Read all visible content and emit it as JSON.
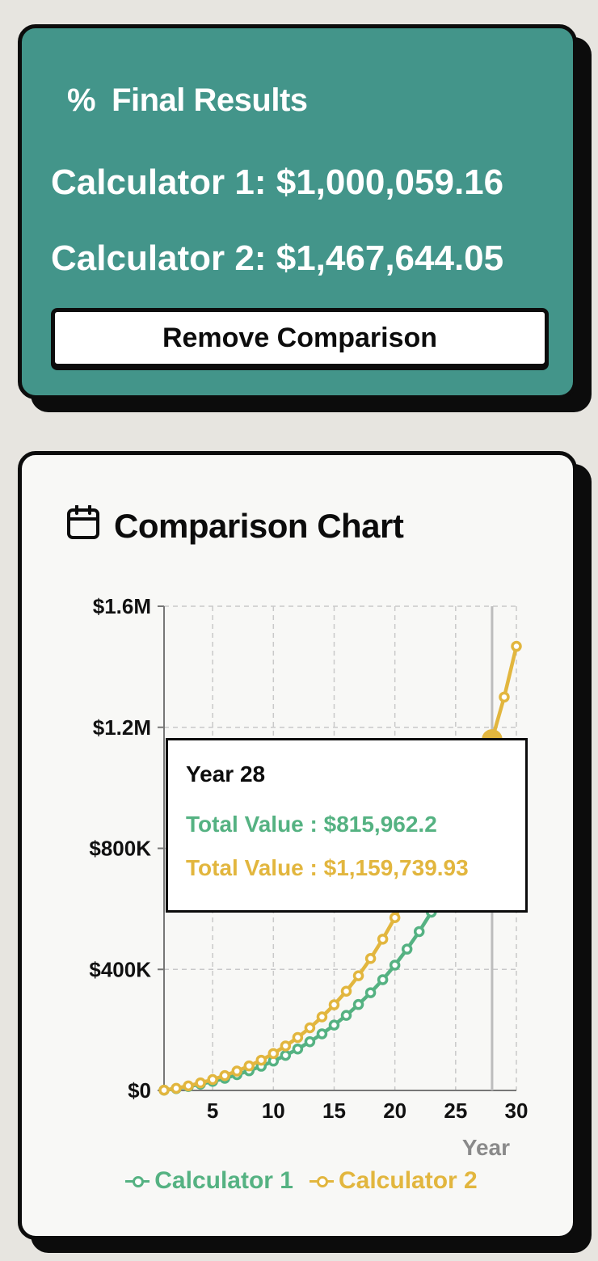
{
  "results": {
    "title": "Final Results",
    "icon": "percent-icon",
    "calc1": "Calculator 1: $1,000,059.16",
    "calc2": "Calculator 2: $1,467,644.05",
    "remove_button": "Remove Comparison"
  },
  "chart_card": {
    "title": "Comparison Chart",
    "icon": "calendar-icon"
  },
  "tooltip": {
    "title": "Year 28",
    "row1": "Total Value : $815,962.2",
    "row2": "Total Value : $1,159,739.93"
  },
  "colors": {
    "results_bg": "#43958a",
    "calc1": "#55b282",
    "calc2": "#e2b63e"
  },
  "chart_data": {
    "type": "line",
    "xlabel": "Year",
    "ylabel": "",
    "xlim": [
      1,
      30
    ],
    "ylim": [
      0,
      1600000
    ],
    "xticks": [
      5,
      10,
      15,
      20,
      25,
      30
    ],
    "yticks": [
      0,
      400000,
      800000,
      1200000,
      1600000
    ],
    "ytick_labels": [
      "$0",
      "$400K",
      "$800K",
      "$1.2M",
      "$1.6M"
    ],
    "grid": true,
    "legend": "bottom",
    "active_x": 28,
    "x": [
      1,
      2,
      3,
      4,
      5,
      6,
      7,
      8,
      9,
      10,
      11,
      12,
      13,
      14,
      15,
      16,
      17,
      18,
      19,
      20,
      21,
      22,
      23,
      24,
      25,
      26,
      27,
      28,
      29,
      30
    ],
    "series": [
      {
        "name": "Calculator 1",
        "color": "#55b282",
        "values": [
          1000,
          6000,
          13000,
          21000,
          30000,
          40000,
          52000,
          65000,
          80000,
          97000,
          116000,
          137000,
          161000,
          187000,
          216000,
          248000,
          284000,
          323000,
          366000,
          414000,
          467000,
          525000,
          589000,
          659000,
          735000,
          818000,
          875000,
          815962.2,
          920000,
          1000059.16
        ]
      },
      {
        "name": "Calculator 2",
        "color": "#e2b63e",
        "values": [
          1000,
          7000,
          15000,
          25000,
          36000,
          49000,
          64000,
          81000,
          100000,
          122000,
          147000,
          175000,
          207000,
          243000,
          283000,
          328000,
          379000,
          436000,
          500000,
          571000,
          651000,
          740000,
          830000,
          930000,
          990000,
          1040000,
          1100000,
          1159739.93,
          1300000,
          1467644.05
        ]
      }
    ]
  }
}
